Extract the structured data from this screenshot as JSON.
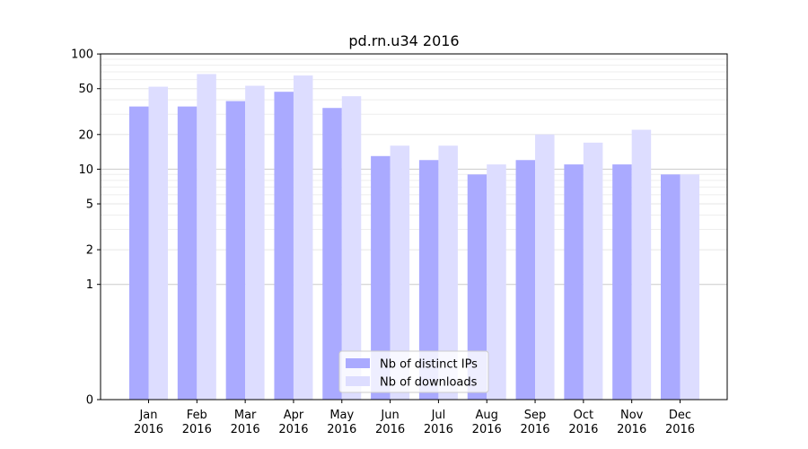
{
  "chart_data": {
    "type": "bar",
    "title": "pd.rn.u34 2016",
    "scale": "symlog",
    "yticks": [
      0,
      1,
      2,
      5,
      10,
      20,
      50,
      100
    ],
    "ytick_labels": [
      "0",
      "1",
      "2",
      "5",
      "10",
      "20",
      "50",
      "100"
    ],
    "categories": [
      "Jan\n2016",
      "Feb\n2016",
      "Mar\n2016",
      "Apr\n2016",
      "May\n2016",
      "Jun\n2016",
      "Jul\n2016",
      "Aug\n2016",
      "Sep\n2016",
      "Oct\n2016",
      "Nov\n2016",
      "Dec\n2016"
    ],
    "series": [
      {
        "name": "Nb of distinct IPs",
        "color": "#aaaaff",
        "values": [
          35,
          35,
          39,
          47,
          34,
          13,
          12,
          9,
          12,
          11,
          11,
          9
        ]
      },
      {
        "name": "Nb of downloads",
        "color": "#ddddff",
        "values": [
          52,
          67,
          53,
          65,
          43,
          16,
          16,
          11,
          20,
          17,
          22,
          9
        ]
      }
    ],
    "legend": "bottom-center",
    "grid": true
  }
}
